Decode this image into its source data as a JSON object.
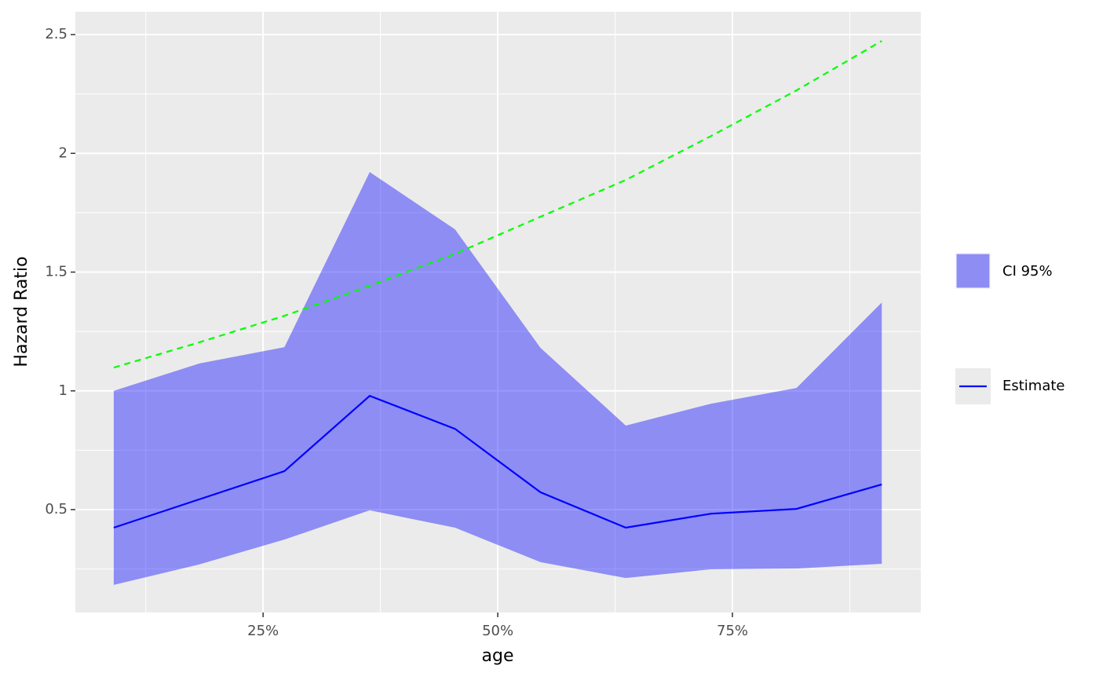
{
  "chart_data": {
    "type": "line",
    "x_label": "age",
    "y_label": "Hazard Ratio",
    "x": [
      9.09,
      18.18,
      27.27,
      36.36,
      45.45,
      54.55,
      63.64,
      72.73,
      81.82,
      90.91
    ],
    "band": {
      "name": "CI 95%",
      "color": "#0000ff",
      "upper": [
        1.0,
        1.115,
        1.184,
        1.921,
        1.68,
        1.181,
        0.854,
        0.946,
        1.012,
        1.372
      ],
      "lower": [
        0.183,
        0.269,
        0.374,
        0.497,
        0.424,
        0.279,
        0.212,
        0.249,
        0.252,
        0.272
      ]
    },
    "series": [
      {
        "name": "Estimate",
        "color": "#0000ff",
        "values": [
          0.424,
          0.543,
          0.662,
          0.979,
          0.84,
          0.573,
          0.424,
          0.483,
          0.503,
          0.606
        ]
      },
      {
        "color": "#00ff00",
        "dashed": true,
        "values": [
          1.098,
          1.204,
          1.316,
          1.442,
          1.577,
          1.733,
          1.888,
          2.073,
          2.265,
          2.473
        ]
      }
    ],
    "xlim": [
      5,
      95.07
    ],
    "ylim": [
      0.067,
      2.596
    ],
    "xticks": [
      {
        "value": 25,
        "label": "25%"
      },
      {
        "value": 50,
        "label": "50%"
      },
      {
        "value": 75,
        "label": "75%"
      }
    ],
    "x_minor_ticks": [
      12.5,
      37.5,
      62.5,
      87.5
    ],
    "yticks": [
      0.5,
      1.0,
      1.5,
      2.0,
      2.5
    ],
    "y_minor_ticks": [
      0.25,
      0.75,
      1.25,
      1.75,
      2.25
    ],
    "grid": true
  }
}
